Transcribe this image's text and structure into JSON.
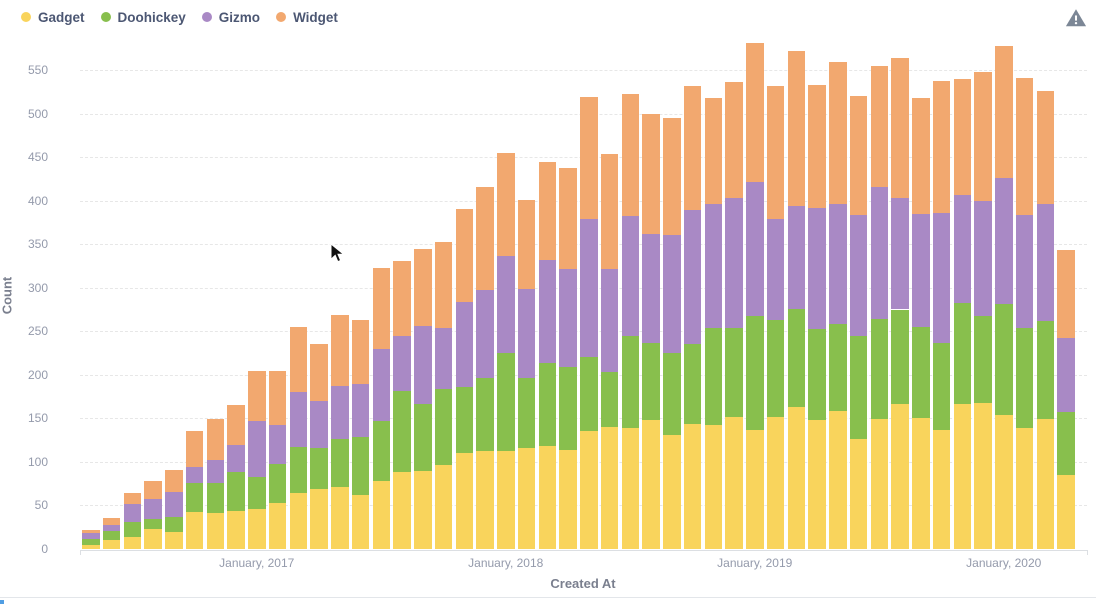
{
  "legend": {
    "items": [
      {
        "label": "Gadget",
        "color": "#F9D45C"
      },
      {
        "label": "Doohickey",
        "color": "#88BF4D"
      },
      {
        "label": "Gizmo",
        "color": "#A989C5"
      },
      {
        "label": "Widget",
        "color": "#F2A86F"
      }
    ]
  },
  "warning_icon": {
    "name": "warning-triangle",
    "color": "#7C8796"
  },
  "chart_data": {
    "type": "bar",
    "stacked": true,
    "xlabel": "Created At",
    "ylabel": "Count",
    "ylim": [
      0,
      550
    ],
    "grid": "horizontal-dashed",
    "legend_position": "top-left",
    "y_ticks": [
      0,
      50,
      100,
      150,
      200,
      250,
      300,
      350,
      400,
      450,
      500,
      550
    ],
    "x_axis_ticks": [
      {
        "label": "January, 2017",
        "bar_index": 8
      },
      {
        "label": "January, 2018",
        "bar_index": 20
      },
      {
        "label": "January, 2019",
        "bar_index": 32
      },
      {
        "label": "January, 2020",
        "bar_index": 44
      }
    ],
    "categories": [
      "May 2016",
      "June 2016",
      "July 2016",
      "August 2016",
      "September 2016",
      "October 2016",
      "November 2016",
      "December 2016",
      "January 2017",
      "February 2017",
      "March 2017",
      "April 2017",
      "May 2017",
      "June 2017",
      "July 2017",
      "August 2017",
      "September 2017",
      "October 2017",
      "November 2017",
      "December 2017",
      "January 2018",
      "February 2018",
      "March 2018",
      "April 2018",
      "May 2018",
      "June 2018",
      "July 2018",
      "August 2018",
      "September 2018",
      "October 2018",
      "November 2018",
      "December 2018",
      "January 2019",
      "February 2019",
      "March 2019",
      "April 2019",
      "May 2019",
      "June 2019",
      "July 2019",
      "August 2019",
      "September 2019",
      "October 2019",
      "November 2019",
      "December 2019",
      "January 2020",
      "February 2020",
      "March 2020",
      "April 2020"
    ],
    "series": [
      {
        "name": "Gadget",
        "color": "#F9D45C",
        "values": [
          5,
          10,
          14,
          23,
          20,
          43,
          41,
          44,
          46,
          53,
          64,
          69,
          71,
          62,
          78,
          88,
          90,
          96,
          110,
          113,
          112,
          116,
          118,
          114,
          135,
          140,
          139,
          148,
          131,
          143,
          142,
          151,
          137,
          152,
          163,
          148,
          158,
          126,
          149,
          166,
          150,
          137,
          166,
          168,
          154,
          139,
          149,
          85
        ]
      },
      {
        "name": "Doohickey",
        "color": "#88BF4D",
        "values": [
          6,
          11,
          17,
          11,
          17,
          33,
          35,
          44,
          37,
          45,
          53,
          47,
          55,
          67,
          69,
          93,
          76,
          88,
          76,
          83,
          113,
          80,
          95,
          95,
          85,
          63,
          106,
          88,
          94,
          92,
          112,
          103,
          130,
          111,
          113,
          105,
          100,
          119,
          115,
          109,
          105,
          99,
          116,
          99,
          127,
          115,
          113,
          72
        ]
      },
      {
        "name": "Gizmo",
        "color": "#A989C5",
        "values": [
          7,
          7,
          21,
          23,
          29,
          18,
          26,
          31,
          64,
          44,
          63,
          54,
          61,
          61,
          83,
          64,
          90,
          70,
          98,
          101,
          112,
          102,
          119,
          112,
          159,
          119,
          137,
          126,
          136,
          154,
          142,
          149,
          154,
          116,
          118,
          139,
          138,
          139,
          152,
          128,
          130,
          150,
          125,
          133,
          145,
          129,
          134,
          85
        ]
      },
      {
        "name": "Widget",
        "color": "#F2A86F",
        "values": [
          4,
          8,
          12,
          21,
          25,
          42,
          47,
          46,
          57,
          62,
          75,
          65,
          82,
          73,
          93,
          86,
          89,
          98,
          106,
          119,
          118,
          103,
          112,
          117,
          140,
          131,
          140,
          137,
          134,
          143,
          122,
          133,
          160,
          153,
          178,
          141,
          163,
          136,
          139,
          161,
          133,
          151,
          133,
          148,
          151,
          158,
          130,
          101
        ]
      }
    ]
  }
}
